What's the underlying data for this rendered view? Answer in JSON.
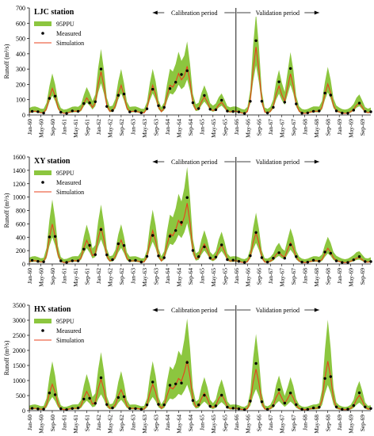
{
  "chart_data": [
    {
      "type": "line",
      "title": "LJC station",
      "ylabel": "Runoff (m³/s)",
      "ylim": [
        0,
        700
      ],
      "yticks": [
        0,
        100,
        200,
        300,
        400,
        500,
        600,
        700
      ],
      "xtick_labels": [
        "Jan-60",
        "May-60",
        "Sep-60",
        "Jan-61",
        "May-61",
        "Sep-61",
        "Jan-62",
        "May-62",
        "Sep-62",
        "Jan-63",
        "May-63",
        "Sep-63",
        "Jan-64",
        "May-64",
        "Sep-64",
        "Jan-65",
        "May-65",
        "Sep-65",
        "Jan-66",
        "May-66",
        "Sep-66",
        "Jan-67",
        "May-67",
        "Sep-67",
        "Jan-68",
        "May-68",
        "Sep-68",
        "Jan-69",
        "May-69",
        "Sep-69"
      ],
      "period_labels": [
        "Calibration period",
        "Validation period"
      ],
      "legend": [
        "95PPU",
        "Measured",
        "Simulation"
      ],
      "peaks": [
        {
          "m": 8,
          "v": 150
        },
        {
          "m": 20,
          "v": 100
        },
        {
          "m": 25,
          "v": 270
        },
        {
          "m": 32,
          "v": 180
        },
        {
          "m": 43,
          "v": 170
        },
        {
          "m": 49,
          "v": 170
        },
        {
          "m": 52,
          "v": 240
        },
        {
          "m": 55,
          "v": 300
        },
        {
          "m": 61,
          "v": 110
        },
        {
          "m": 67,
          "v": 70
        },
        {
          "m": 79,
          "v": 420
        },
        {
          "m": 87,
          "v": 170
        },
        {
          "m": 91,
          "v": 250
        },
        {
          "m": 104,
          "v": 190
        },
        {
          "m": 115,
          "v": 60
        }
      ],
      "base": 25,
      "band_scale": 0.45,
      "measured_scale": 1.05
    },
    {
      "type": "line",
      "title": "XY station",
      "ylabel": "Runoff (m³/s)",
      "ylim": [
        0,
        1600
      ],
      "yticks": [
        0,
        200,
        400,
        600,
        800,
        1000,
        1200,
        1400,
        1600
      ],
      "xtick_labels": [
        "Jan-60",
        "May-60",
        "Sep-60",
        "Jan-61",
        "May-61",
        "Sep-61",
        "Jan-62",
        "May-62",
        "Sep-62",
        "Jan-63",
        "May-63",
        "Sep-63",
        "Jan-64",
        "May-64",
        "Sep-64",
        "Jan-65",
        "May-65",
        "Sep-65",
        "Jan-66",
        "May-66",
        "Sep-66",
        "Jan-67",
        "May-67",
        "Sep-67",
        "Jan-68",
        "May-68",
        "Sep-68",
        "Jan-69",
        "May-69",
        "Sep-69"
      ],
      "period_labels": [
        "Calibration period",
        "Validation period"
      ],
      "legend": [
        "95PPU",
        "Measured",
        "Simulation"
      ],
      "peaks": [
        {
          "m": 8,
          "v": 550
        },
        {
          "m": 20,
          "v": 330
        },
        {
          "m": 25,
          "v": 520
        },
        {
          "m": 32,
          "v": 330
        },
        {
          "m": 43,
          "v": 450
        },
        {
          "m": 49,
          "v": 400
        },
        {
          "m": 52,
          "v": 580
        },
        {
          "m": 55,
          "v": 870
        },
        {
          "m": 61,
          "v": 280
        },
        {
          "m": 67,
          "v": 260
        },
        {
          "m": 79,
          "v": 420
        },
        {
          "m": 87,
          "v": 140
        },
        {
          "m": 91,
          "v": 280
        },
        {
          "m": 104,
          "v": 210
        },
        {
          "m": 115,
          "v": 60
        }
      ],
      "base": 50,
      "band_scale": 0.55,
      "measured_scale": 1.1
    },
    {
      "type": "line",
      "title": "HX station",
      "ylabel": "Runoff (m³/s)",
      "ylim": [
        0,
        3500
      ],
      "yticks": [
        0,
        500,
        1000,
        1500,
        2000,
        2500,
        3000,
        3500
      ],
      "xtick_labels": [
        "Jan-60",
        "May-60",
        "Sep-60",
        "Jan-61",
        "May-61",
        "Sep-61",
        "Jan-62",
        "May-62",
        "Sep-62",
        "Jan-63",
        "May-63",
        "Sep-63",
        "Jan-64",
        "May-64",
        "Sep-64",
        "Jan-65",
        "May-65",
        "Sep-65",
        "Jan-66",
        "May-66",
        "Sep-66",
        "Jan-67",
        "May-67",
        "Sep-67",
        "Jan-68",
        "May-68",
        "Sep-68",
        "Jan-69",
        "May-69",
        "Sep-69"
      ],
      "period_labels": [
        "Calibration period",
        "Validation period"
      ],
      "legend": [
        "95PPU",
        "Measured",
        "Simulation"
      ],
      "peaks": [
        {
          "m": 8,
          "v": 800
        },
        {
          "m": 20,
          "v": 600
        },
        {
          "m": 25,
          "v": 1000
        },
        {
          "m": 32,
          "v": 650
        },
        {
          "m": 43,
          "v": 800
        },
        {
          "m": 49,
          "v": 700
        },
        {
          "m": 52,
          "v": 950
        },
        {
          "m": 55,
          "v": 1600
        },
        {
          "m": 61,
          "v": 550
        },
        {
          "m": 67,
          "v": 500
        },
        {
          "m": 79,
          "v": 1300
        },
        {
          "m": 87,
          "v": 550
        },
        {
          "m": 91,
          "v": 520
        },
        {
          "m": 104,
          "v": 1600
        },
        {
          "m": 115,
          "v": 450
        }
      ],
      "base": 80,
      "band_scale": 0.8,
      "measured_scale": 1.05
    }
  ]
}
